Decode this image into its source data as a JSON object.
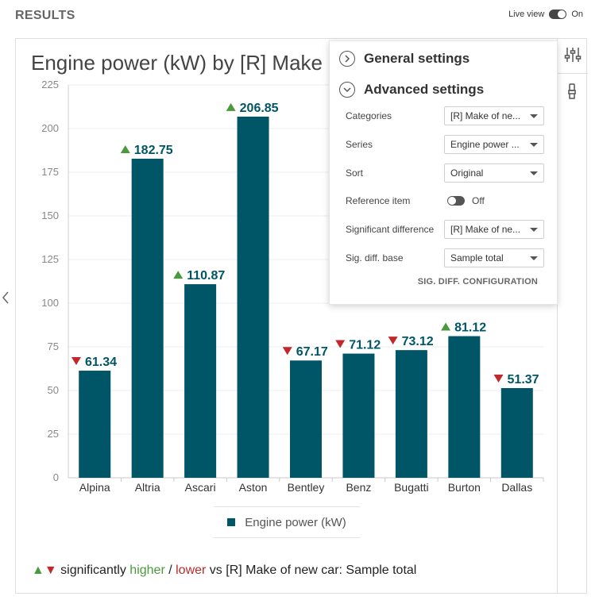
{
  "header": {
    "title": "RESULTS",
    "live_view_label": "Live view",
    "live_view_state": "On"
  },
  "chart_title": "Engine power (kW) by [R] Make of new car",
  "chart_data": {
    "type": "bar",
    "title": "Engine power (kW) by [R] Make of new car",
    "categories": [
      "Alpina",
      "Altria",
      "Ascari",
      "Aston",
      "Bentley",
      "Benz",
      "Bugatti",
      "Burton",
      "Dallas"
    ],
    "series": [
      {
        "name": "Engine power (kW)",
        "values": [
          61.34,
          182.75,
          110.87,
          206.85,
          67.17,
          71.12,
          73.12,
          81.12,
          51.37
        ],
        "labels": [
          "61.34",
          "182.75",
          "110.87",
          "206.85",
          "67.17",
          "71.12",
          "73.12",
          "81.12",
          "51.37"
        ],
        "significance": [
          "lower",
          "higher",
          "higher",
          "higher",
          "lower",
          "lower",
          "lower",
          "higher",
          "lower"
        ]
      }
    ],
    "ylim": [
      0,
      225
    ],
    "yticks": [
      0,
      25,
      50,
      75,
      100,
      125,
      150,
      175,
      200,
      225
    ],
    "ytick_labels": [
      "0",
      "25",
      "50",
      "75",
      "100",
      "125",
      "150",
      "175",
      "200",
      "225"
    ],
    "xlabel": "",
    "ylabel": "",
    "grid": true,
    "legend": "bottom-center",
    "bar_color": "#005566",
    "label_color": "#005566",
    "higher_color": "#4a9a3c",
    "lower_color": "#c0282b"
  },
  "legend": {
    "label": "Engine power (kW)"
  },
  "footnote": {
    "text_before": "significantly",
    "higher": "higher",
    "slash": " / ",
    "lower": "lower",
    "text_after": " vs [R] Make of new car: Sample total"
  },
  "settings_panel": {
    "general_label": "General settings",
    "advanced_label": "Advanced settings",
    "rows": [
      {
        "label": "Categories",
        "value": "[R] Make of ne..."
      },
      {
        "label": "Series",
        "value": "Engine power ..."
      },
      {
        "label": "Sort",
        "value": "Original"
      },
      {
        "label": "Reference item",
        "value": "Off"
      },
      {
        "label": "Significant difference",
        "value": "[R] Make of ne..."
      },
      {
        "label": "Sig. diff. base",
        "value": "Sample total"
      }
    ],
    "config_link": "SIG. DIFF. CONFIGURATION"
  },
  "icons": {
    "settings": "sliders-icon",
    "paint": "paintbrush-icon",
    "collapse_left": "chevron-left-icon"
  }
}
